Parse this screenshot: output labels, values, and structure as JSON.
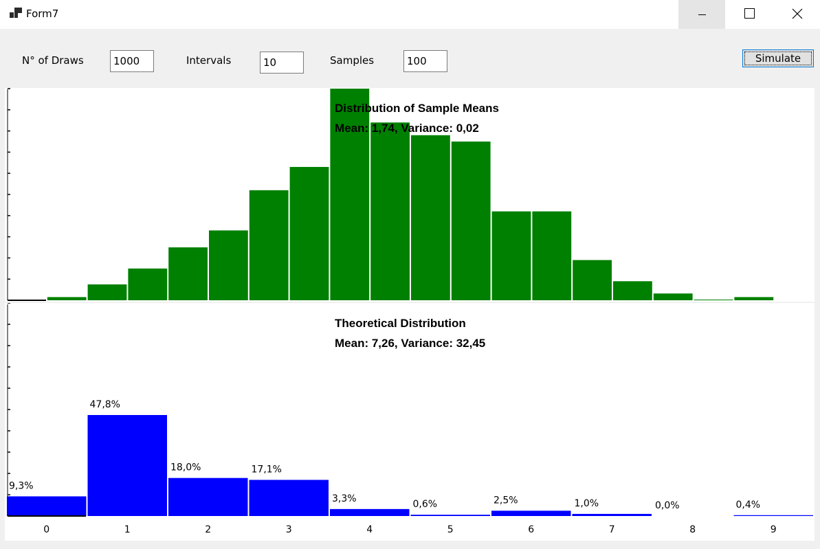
{
  "window": {
    "title": "Form7"
  },
  "controls": {
    "draws_label": "N° of Draws",
    "draws_value": "1000",
    "intervals_label": "Intervals",
    "intervals_value": "10",
    "samples_label": "Samples",
    "samples_value": "100",
    "simulate_label": "Simulate"
  },
  "colors": {
    "sample_bars": "#008000",
    "theoretical_bars": "#0000ff"
  },
  "chart_data": [
    {
      "type": "bar",
      "title": "Distribution of Sample Means",
      "subtitle": "Mean: 1,74, Variance: 0,02",
      "values": [
        0,
        1.5,
        7.5,
        15,
        25,
        33,
        52,
        63,
        100,
        84,
        78,
        75,
        42,
        42,
        19,
        9,
        3.2,
        0.3,
        1.5
      ],
      "ylim": [
        0,
        100
      ],
      "legend": "none"
    },
    {
      "type": "bar",
      "title": "Theoretical Distribution",
      "subtitle": "Mean: 7,26, Variance: 32,45",
      "categories": [
        "0",
        "1",
        "2",
        "3",
        "4",
        "5",
        "6",
        "7",
        "8",
        "9"
      ],
      "values": [
        9.3,
        47.8,
        18.0,
        17.1,
        3.3,
        0.6,
        2.5,
        1.0,
        0.0,
        0.4
      ],
      "labels": [
        "9,3%",
        "47,8%",
        "18,0%",
        "17,1%",
        "3,3%",
        "0,6%",
        "2,5%",
        "1,0%",
        "0,0%",
        "0,4%"
      ],
      "ylim": [
        0,
        100
      ],
      "legend": "none"
    }
  ]
}
